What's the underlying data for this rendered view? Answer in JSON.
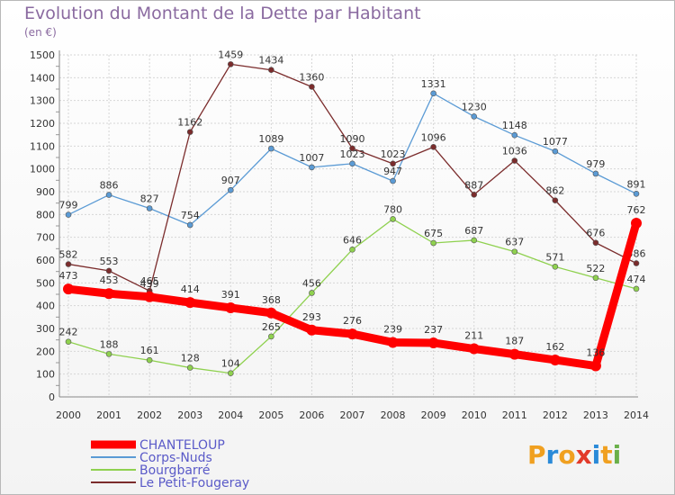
{
  "title": "Evolution du Montant de la Dette par Habitant",
  "subtitle": "(en €)",
  "logo": {
    "text": "Proxiti",
    "letters": [
      "P",
      "r",
      "o",
      "x",
      "i",
      "t",
      "i"
    ],
    "colors": [
      "#f0a020",
      "#2a8ad8",
      "#f0a020",
      "#e23a2a",
      "#2a8ad8",
      "#f0a020",
      "#6ab04a"
    ]
  },
  "chart_data": {
    "type": "line",
    "x": [
      "2000",
      "2001",
      "2002",
      "2003",
      "2004",
      "2005",
      "2006",
      "2007",
      "2008",
      "2009",
      "2010",
      "2011",
      "2012",
      "2013",
      "2014"
    ],
    "ylim": [
      0,
      1500
    ],
    "yticks": [
      0,
      100,
      200,
      300,
      400,
      500,
      600,
      700,
      800,
      900,
      1000,
      1100,
      1200,
      1300,
      1400,
      1500
    ],
    "grid": true,
    "legend": "bottom-left",
    "series": [
      {
        "name": "CHANTELOUP",
        "color": "#ff0000",
        "highlight": true,
        "values": [
          473,
          453,
          439,
          414,
          391,
          368,
          293,
          276,
          239,
          237,
          211,
          187,
          162,
          136,
          762
        ],
        "labels": [
          "473",
          "453",
          "439",
          "414",
          "391",
          "368",
          "293",
          "276",
          "239",
          "237",
          "211",
          "187",
          "162",
          "136",
          "762"
        ]
      },
      {
        "name": "Corps-Nuds",
        "color": "#5b9bd5",
        "values": [
          799,
          886,
          827,
          754,
          907,
          1089,
          1007,
          1023,
          947,
          1331,
          1230,
          1148,
          1077,
          979,
          891
        ],
        "labels": [
          "799",
          "886",
          "827",
          "754",
          "907",
          "1089",
          "1007",
          "1023",
          "947",
          "1331",
          "1230",
          "1148",
          "1077",
          "979",
          "891"
        ]
      },
      {
        "name": "Bourgbarré",
        "color": "#8fd14f",
        "values": [
          242,
          188,
          161,
          128,
          104,
          265,
          456,
          646,
          780,
          675,
          687,
          637,
          571,
          522,
          474
        ],
        "labels": [
          "242",
          "188",
          "161",
          "128",
          "104",
          "265",
          "456",
          "646",
          "780",
          "675",
          "687",
          "637",
          "571",
          "522",
          "474"
        ]
      },
      {
        "name": "Le Petit-Fougeray",
        "color": "#7b2c2c",
        "values": [
          582,
          553,
          465,
          1162,
          1459,
          1434,
          1360,
          1090,
          1023,
          1096,
          887,
          1036,
          862,
          676,
          586
        ],
        "labels": [
          "582",
          "553",
          "465",
          "1162",
          "1459",
          "1434",
          "1360",
          "1090",
          "1023",
          "1096",
          "887",
          "1036",
          "862",
          "676",
          "586"
        ]
      }
    ]
  }
}
